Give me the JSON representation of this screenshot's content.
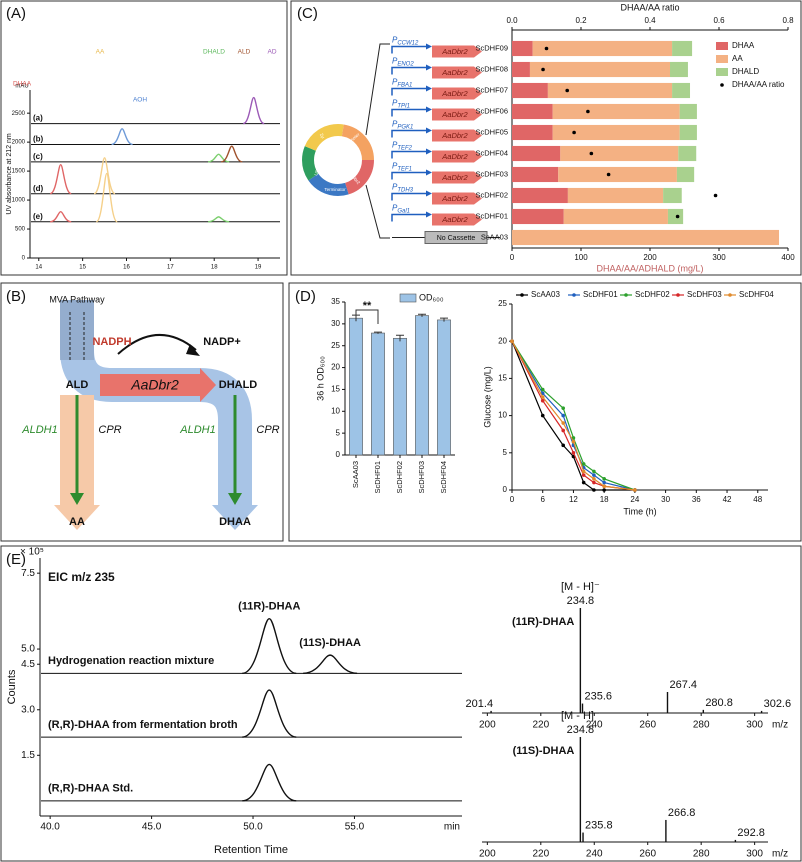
{
  "panel_labels": [
    "(A)",
    "(B)",
    "(C)",
    "(D)",
    "(E)"
  ],
  "diagram": {
    "pathway": "MVA Pathway",
    "cofactor_in": "NADPH",
    "cofactor_out": "NADP+",
    "substrate": "ALD",
    "enzyme": "AaDbr2",
    "product": "DHALD",
    "left_enzyme": "ALDH1",
    "left_enzyme2": "CPR",
    "right_enzyme": "ALDH1",
    "right_enzyme2": "CPR",
    "left_end": "AA",
    "right_end": "DHAA"
  },
  "constructs": {
    "promoters": [
      [
        "P",
        "CCW12"
      ],
      [
        "P",
        "ENO2"
      ],
      [
        "P",
        "FBA1"
      ],
      [
        "P",
        "TPI1"
      ],
      [
        "P",
        "PGK1"
      ],
      [
        "P",
        "TEF2"
      ],
      [
        "P",
        "TEF1"
      ],
      [
        "P",
        "TDH3"
      ],
      [
        "P",
        "Gal1"
      ]
    ],
    "gene": "AaDbr2",
    "empty": "No Cassette",
    "plasmid_parts": [
      "Promoter",
      "AaDbr2",
      "Terminator",
      "URA3",
      "2μ"
    ]
  },
  "chart_data": [
    {
      "type": "chromatogram",
      "ylabel": "UV absorbance at 212 nm",
      "yunit": "mAU",
      "xlim": [
        13.8,
        19.5
      ],
      "xticks": [
        14,
        15,
        16,
        17,
        18,
        19
      ],
      "ylim": [
        0,
        2900
      ],
      "yticks": [
        0,
        500,
        1000,
        1500,
        2000,
        2500
      ],
      "compounds": [
        {
          "name": "DHAA",
          "color": "#d9534f"
        },
        {
          "name": "AA",
          "color": "#e8b84a"
        },
        {
          "name": "AOH",
          "color": "#4a7fd0"
        },
        {
          "name": "DHALD",
          "color": "#5cb85c"
        },
        {
          "name": "ALD",
          "color": "#a0522d"
        },
        {
          "name": "AD",
          "color": "#9b59b6"
        }
      ],
      "traces": [
        {
          "name": "(a)",
          "baseline": 2320,
          "peaks": [
            {
              "x": 18.9,
              "apex": 2770,
              "color": "#9b59b6"
            }
          ]
        },
        {
          "name": "(b)",
          "baseline": 1960,
          "peaks": [
            {
              "x": 15.9,
              "apex": 2230,
              "color": "#6f9bd8"
            }
          ]
        },
        {
          "name": "(c)",
          "baseline": 1660,
          "peaks": [
            {
              "x": 18.1,
              "apex": 1790,
              "color": "#7ccf6e"
            },
            {
              "x": 18.4,
              "apex": 1930,
              "color": "#a0522d"
            }
          ]
        },
        {
          "name": "(d)",
          "baseline": 1110,
          "peaks": [
            {
              "x": 14.5,
              "apex": 1610,
              "color": "#e06666"
            },
            {
              "x": 15.5,
              "apex": 1730,
              "color": "#f5d08a"
            }
          ]
        },
        {
          "name": "(e)",
          "baseline": 625,
          "peaks": [
            {
              "x": 14.5,
              "apex": 800,
              "color": "#e06666"
            },
            {
              "x": 15.55,
              "apex": 1460,
              "color": "#f5d08a"
            },
            {
              "x": 18.1,
              "apex": 710,
              "color": "#7ccf6e"
            }
          ]
        }
      ]
    },
    {
      "type": "hbar_stacked",
      "x2label": "DHAA/AA ratio",
      "xlabel": "DHAA/AA/ADHALD (mg/L)",
      "categories": [
        "ScDHF09",
        "ScDHF08",
        "ScDHF07",
        "ScDHF06",
        "ScDHF05",
        "ScDHF04",
        "ScDHF03",
        "ScDHF02",
        "ScDHF01",
        "ScAA03"
      ],
      "series": [
        {
          "name": "DHAA",
          "color": "#e06666",
          "values": [
            30,
            26,
            52,
            59,
            59,
            70,
            67,
            81,
            75,
            0
          ]
        },
        {
          "name": "AA",
          "color": "#f4b183",
          "values": [
            202,
            203,
            180,
            184,
            184,
            171,
            172,
            138,
            151,
            387
          ]
        },
        {
          "name": "DHALD",
          "color": "#a9d18e",
          "values": [
            29,
            26,
            26,
            25,
            25,
            26,
            25,
            27,
            22,
            0
          ]
        },
        {
          "name": "DHAA/AA ratio",
          "color": "#000000",
          "axis": "x2",
          "values": [
            0.1,
            0.09,
            0.16,
            0.22,
            0.18,
            0.23,
            0.28,
            0.59,
            0.48,
            null
          ]
        }
      ],
      "xlim": [
        0,
        400
      ],
      "xticks": [
        0,
        100,
        200,
        300,
        400
      ],
      "x2lim": [
        0,
        0.8
      ],
      "x2ticks": [
        {
          "value": 0,
          "label": "0.0"
        },
        0.2,
        0.4,
        0.6,
        0.8
      ],
      "legend": "upper right"
    },
    {
      "type": "bar",
      "ylabel": "36 h OD₆₀₀",
      "annotation": "**",
      "categories": [
        "ScAA03",
        "ScDHF01",
        "ScDHF02",
        "ScDHF03",
        "ScDHF04"
      ],
      "series": [
        {
          "name": "OD₆₀₀",
          "color": "#9dc3e6",
          "values": [
            31.3,
            27.9,
            26.7,
            31.9,
            30.9
          ],
          "errors": [
            0.7,
            0.2,
            0.7,
            0.3,
            0.4
          ]
        }
      ],
      "ylim": [
        0,
        35
      ],
      "yticks": [
        0,
        5,
        10,
        15,
        20,
        25,
        30,
        35
      ]
    },
    {
      "type": "line",
      "xlabel": "Time (h)",
      "ylabel": "Glucose (mg/L)",
      "x": [
        0,
        6,
        10,
        12,
        14,
        16,
        18,
        24
      ],
      "xlim": [
        0,
        50
      ],
      "xticks": [
        0,
        6,
        12,
        18,
        24,
        30,
        36,
        42,
        48
      ],
      "ylim": [
        0,
        25
      ],
      "yticks": [
        0,
        5,
        10,
        15,
        20,
        25
      ],
      "series": [
        {
          "name": "ScAA03",
          "color": "#000000",
          "values": [
            20,
            10,
            6,
            4.5,
            1,
            0,
            0,
            0
          ]
        },
        {
          "name": "ScDHF01",
          "color": "#1f5fbf",
          "values": [
            20,
            13,
            10,
            6,
            3,
            2,
            1,
            0
          ]
        },
        {
          "name": "ScDHF02",
          "color": "#2ca02c",
          "values": [
            20,
            13.5,
            11,
            7,
            3.5,
            2.5,
            1.5,
            0
          ]
        },
        {
          "name": "ScDHF03",
          "color": "#d62728",
          "values": [
            20,
            12,
            8,
            5,
            2,
            1,
            0.5,
            0
          ]
        },
        {
          "name": "ScDHF04",
          "color": "#e08a2c",
          "values": [
            20,
            12.5,
            9,
            6.5,
            2.5,
            1.5,
            0.5,
            0
          ]
        }
      ]
    },
    {
      "type": "chromatogram",
      "note": "EIC m/z 235",
      "yscale": "× 10⁵",
      "ylabel": "Counts",
      "xlabel": "Retention Time",
      "xunit": "min",
      "xlim": [
        39.5,
        60.3
      ],
      "xticks": [
        {
          "value": 40,
          "label": "40.0"
        },
        {
          "value": 45,
          "label": "45.0"
        },
        {
          "value": 50,
          "label": "50.0"
        },
        {
          "value": 55,
          "label": "55.0"
        }
      ],
      "ylim": [
        -0.5,
        8.0
      ],
      "yticks": [
        1.5,
        {
          "value": 3,
          "label": "3.0"
        },
        4.5,
        {
          "value": 5,
          "label": "5.0"
        },
        7.5
      ],
      "traces": [
        {
          "name": "Hydrogenation reaction mixture",
          "baseline": 4.2,
          "peaks": [
            {
              "name": "(11R)-DHAA",
              "x": 50.8,
              "apex": 6.0
            },
            {
              "name": "(11S)-DHAA",
              "x": 53.8,
              "apex": 4.8
            }
          ]
        },
        {
          "name": "(R,R)-DHAA from fermentation broth",
          "baseline": 2.1,
          "peaks": [
            {
              "x": 50.8,
              "apex": 3.65
            }
          ]
        },
        {
          "name": "(R,R)-DHAA Std.",
          "baseline": 0,
          "peaks": [
            {
              "x": 50.8,
              "apex": 1.2
            }
          ]
        }
      ]
    },
    {
      "type": "spectrum",
      "xunit": "m/z",
      "xlim": [
        198,
        305
      ],
      "xticks": [
        200,
        220,
        240,
        260,
        280,
        300
      ],
      "ylim": [
        0,
        100
      ],
      "spectra": [
        {
          "name": "(11R)-DHAA",
          "ion": "[M - H]⁻",
          "mz": [
            201.4,
            234.8,
            235.6,
            267.4,
            280.8,
            302.6
          ],
          "intensity": [
            2,
            100,
            9,
            20,
            3,
            2
          ]
        },
        {
          "name": "(11S)-DHAA",
          "ion": "[M - H]⁻",
          "mz": [
            234.8,
            235.8,
            266.8,
            292.8
          ],
          "intensity": [
            100,
            9,
            21,
            2
          ]
        }
      ]
    }
  ]
}
